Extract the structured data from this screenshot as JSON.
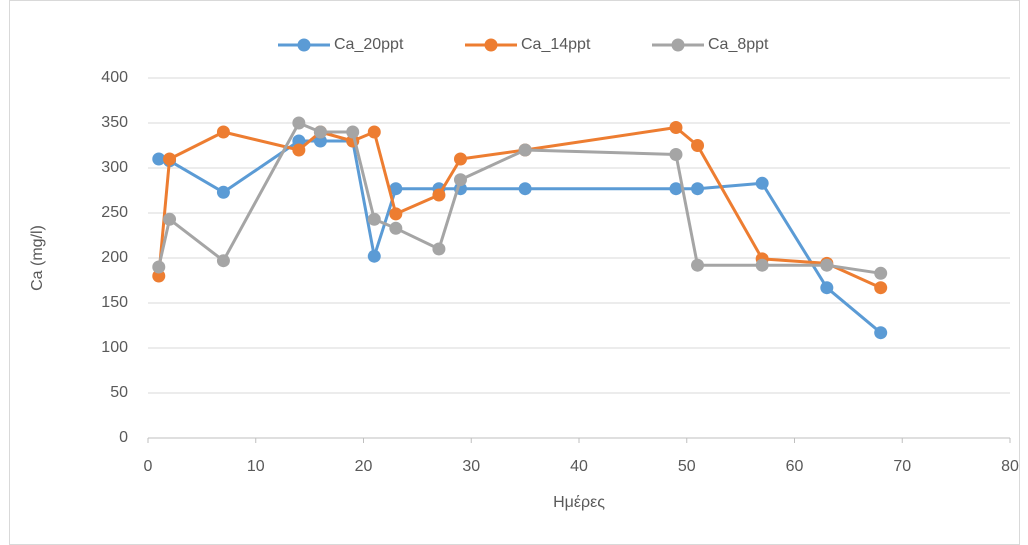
{
  "chart_data": {
    "type": "line",
    "x": [
      1,
      2,
      7,
      14,
      16,
      19,
      21,
      23,
      27,
      29,
      35,
      49,
      51,
      57,
      63,
      68
    ],
    "series": [
      {
        "name": "Ca_20ppt",
        "color": "#5b9bd5",
        "values": [
          310,
          308,
          273,
          330,
          330,
          330,
          202,
          277,
          277,
          277,
          277,
          277,
          277,
          283,
          167,
          117
        ]
      },
      {
        "name": "Ca_14ppt",
        "color": "#ed7d31",
        "values": [
          180,
          310,
          340,
          320,
          340,
          330,
          340,
          249,
          270,
          310,
          320,
          345,
          325,
          199,
          194,
          167
        ]
      },
      {
        "name": "Ca_8ppt",
        "color": "#a5a5a5",
        "values": [
          190,
          243,
          197,
          350,
          340,
          340,
          243,
          233,
          210,
          287,
          320,
          315,
          192,
          192,
          192,
          183
        ]
      }
    ],
    "xlabel": "Ημέρες",
    "ylabel": "Ca (mg/l)",
    "xlim": [
      0,
      80
    ],
    "xticks": [
      0,
      10,
      20,
      30,
      40,
      50,
      60,
      70,
      80
    ],
    "ylim": [
      0,
      400
    ],
    "yticks": [
      0,
      50,
      100,
      150,
      200,
      250,
      300,
      350,
      400
    ],
    "grid": true,
    "legend": "top"
  }
}
